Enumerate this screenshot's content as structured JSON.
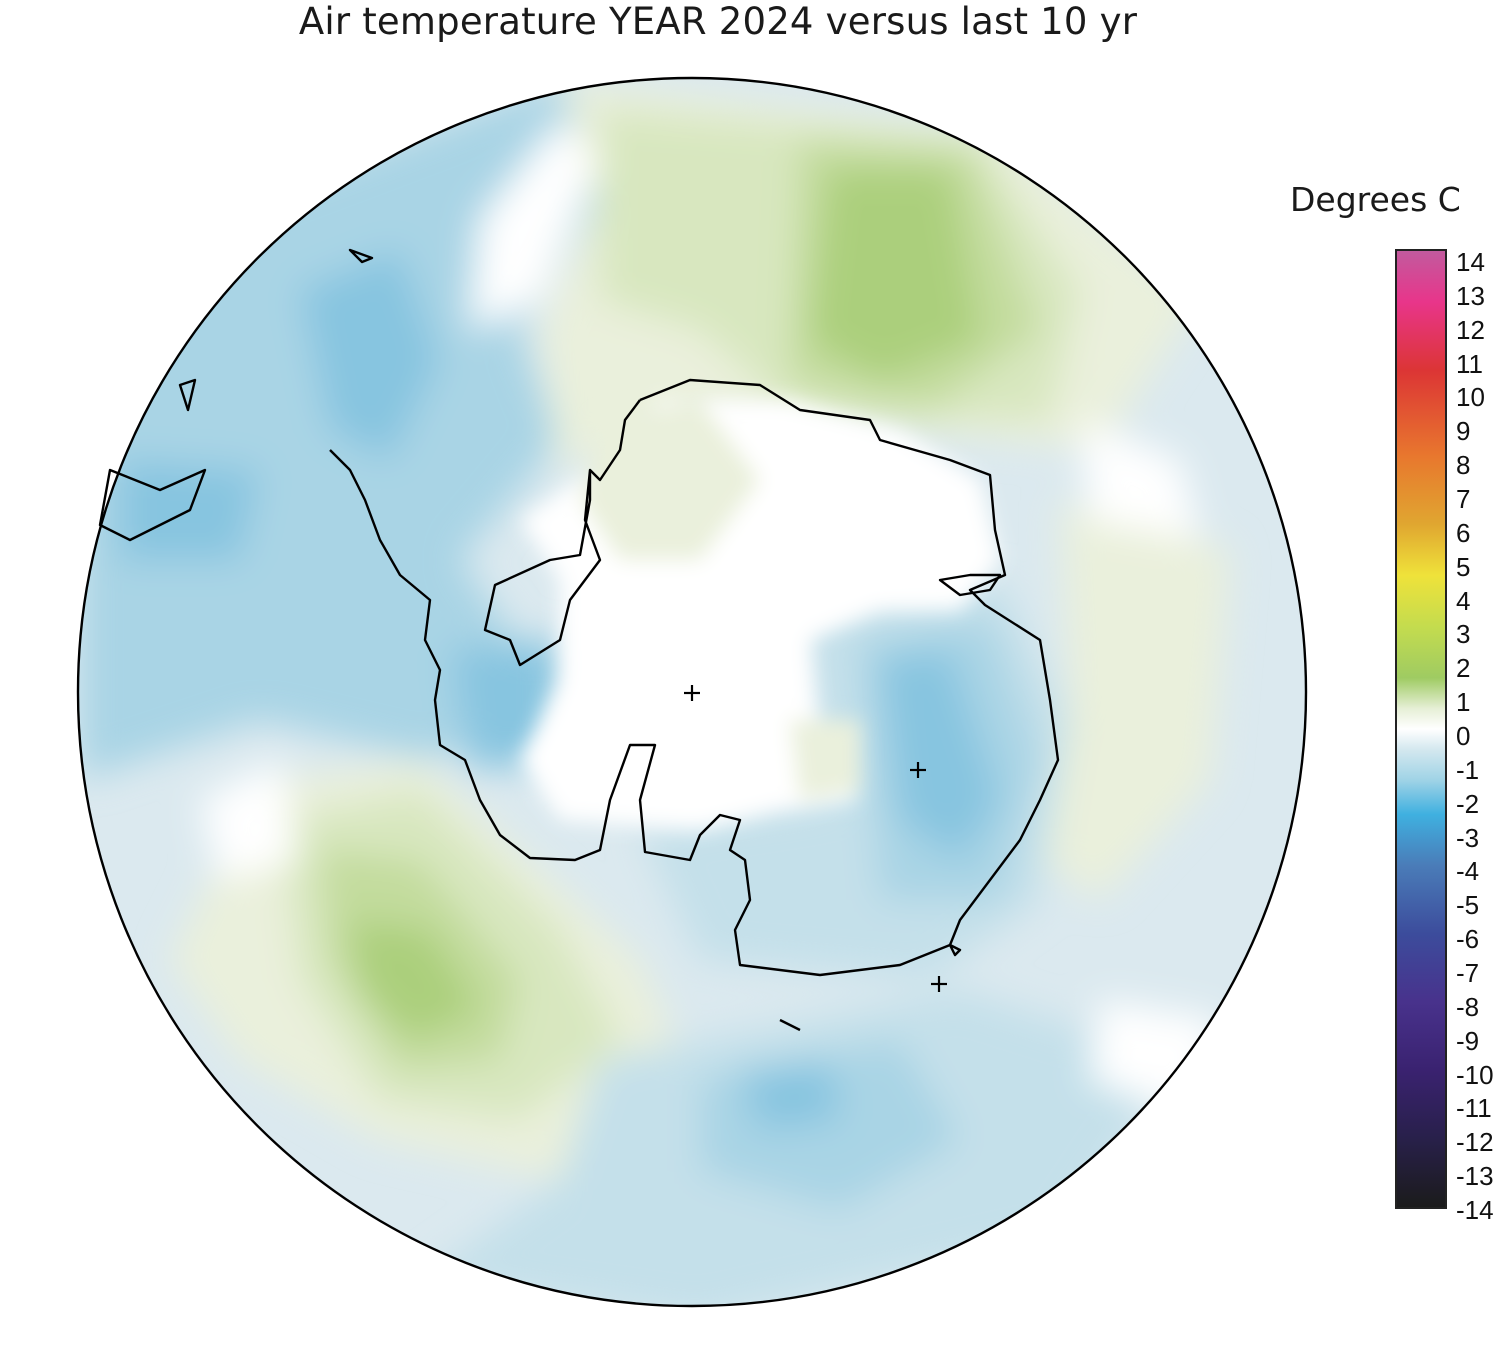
{
  "title": "Air temperature YEAR 2024 versus last 10 yr",
  "legend": {
    "unit": "Degrees C",
    "ticks": [
      "14",
      "13",
      "12",
      "11",
      "10",
      "9",
      "8",
      "7",
      "6",
      "5",
      "4",
      "3",
      "2",
      "1",
      "0",
      "-1",
      "-2",
      "-3",
      "-4",
      "-5",
      "-6",
      "-7",
      "-8",
      "-9",
      "-10",
      "-11",
      "-12",
      "-13",
      "-14"
    ],
    "stops": [
      {
        "value": 14,
        "color": "#c25a9e"
      },
      {
        "value": 12.5,
        "color": "#e8358a"
      },
      {
        "value": 10.5,
        "color": "#dc3535"
      },
      {
        "value": 8,
        "color": "#e8772e"
      },
      {
        "value": 6,
        "color": "#e0a630"
      },
      {
        "value": 4.5,
        "color": "#efe23a"
      },
      {
        "value": 3,
        "color": "#c4dc4e"
      },
      {
        "value": 1.5,
        "color": "#9fcb62"
      },
      {
        "value": 0.6,
        "color": "#e6efd6"
      },
      {
        "value": 0,
        "color": "#ffffff"
      },
      {
        "value": -0.6,
        "color": "#d4e8ef"
      },
      {
        "value": -1.5,
        "color": "#9fd3e6"
      },
      {
        "value": -2.5,
        "color": "#3fb0e0"
      },
      {
        "value": -4,
        "color": "#4a7cb8"
      },
      {
        "value": -6,
        "color": "#3c4c9c"
      },
      {
        "value": -8,
        "color": "#48328c"
      },
      {
        "value": -10,
        "color": "#3a2270"
      },
      {
        "value": -12,
        "color": "#28204a"
      },
      {
        "value": -14,
        "color": "#1b1b1b"
      }
    ]
  },
  "map": {
    "projection": "south polar stereographic",
    "colors": {
      "warm1": "#eaf0dc",
      "warm2": "#d8e7bf",
      "warm3": "#c3dc9d",
      "warm4": "#abcf7c",
      "cool1": "#dbe9ef",
      "cool2": "#c4e0ea",
      "cool3": "#a9d4e5",
      "cool4": "#87c5e0",
      "neutral": "#ffffff",
      "coast": "#000000"
    },
    "markers": [
      "plus",
      "plus",
      "plus"
    ]
  }
}
